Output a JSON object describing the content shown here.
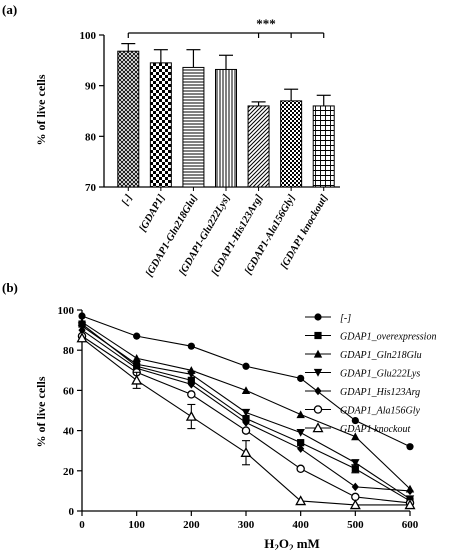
{
  "panel_a_label": "(a)",
  "panel_b_label": "(b)",
  "chart_data": [
    {
      "type": "bar",
      "title": "",
      "ylabel": "% of live cells",
      "xlabel": "",
      "ylim": [
        70,
        100
      ],
      "yticks": [
        70,
        80,
        90,
        100
      ],
      "categories": [
        "[-]",
        "[GDAP1]",
        "[GDAP1-Gln218Glu]",
        "[GDAP1-Glu222Lys]",
        "[GDAP1-His123Arg]",
        "[GDAP1-Ala156Gly]",
        "[GDAP1 knockout]"
      ],
      "values": [
        96.8,
        94.5,
        93.6,
        93.2,
        86.0,
        87.0,
        86.0
      ],
      "errors": [
        1.5,
        2.6,
        3.5,
        2.8,
        0.8,
        2.3,
        2.1
      ],
      "patterns": [
        "crosshatch",
        "check",
        "hlines",
        "vlines",
        "diag",
        "check-small",
        "grid"
      ],
      "annotation": "***"
    },
    {
      "type": "line",
      "title": "",
      "xlabel": "H2O2 mM",
      "xlabel_main": "H",
      "xlabel_sub1": "2",
      "xlabel_mid": "O",
      "xlabel_sub2": "2",
      "xlabel_unit": " mM",
      "ylabel": "% of live cells",
      "x": [
        0,
        100,
        200,
        300,
        400,
        500,
        600
      ],
      "xlim": [
        0,
        600
      ],
      "ylim": [
        0,
        100
      ],
      "yticks": [
        0,
        20,
        40,
        60,
        80,
        100
      ],
      "legend_position": "right",
      "series": [
        {
          "name": "[-]",
          "marker": "circle",
          "values": [
            97,
            87,
            82,
            72,
            66,
            45,
            32
          ],
          "errors": [
            0,
            0,
            0,
            0,
            0,
            0,
            0
          ]
        },
        {
          "name": "GDAP1_overexpression",
          "marker": "square",
          "values": [
            93,
            72,
            65,
            46,
            34,
            21,
            5
          ],
          "errors": [
            0,
            0,
            0,
            0,
            0,
            2,
            0
          ]
        },
        {
          "name": "GDAP1_Gln218Glu",
          "marker": "triangle-up",
          "values": [
            94,
            76,
            70,
            60,
            48,
            37,
            11
          ],
          "errors": [
            0,
            0,
            0,
            0,
            0,
            0,
            0
          ]
        },
        {
          "name": "GDAP1_Glu222Lys",
          "marker": "triangle-down",
          "values": [
            92,
            73,
            68,
            49,
            39,
            24,
            6
          ],
          "errors": [
            0,
            0,
            0,
            0,
            0,
            0,
            0
          ]
        },
        {
          "name": "GDAP1_His123Arg",
          "marker": "diamond",
          "values": [
            90,
            71,
            63,
            44,
            31,
            12,
            10
          ],
          "errors": [
            0,
            0,
            0,
            0,
            0,
            0,
            0
          ]
        },
        {
          "name": "GDAP1_Ala156Gly",
          "marker": "open-circle",
          "values": [
            87,
            69,
            58,
            40,
            21,
            7,
            4
          ],
          "errors": [
            0,
            0,
            0,
            0,
            0,
            0,
            0
          ]
        },
        {
          "name": "GDAP1 knockout",
          "marker": "open-triangle",
          "values": [
            86,
            65,
            47,
            29,
            5,
            3,
            3
          ],
          "errors": [
            0,
            4,
            6,
            6,
            0,
            0,
            0
          ]
        }
      ]
    }
  ]
}
